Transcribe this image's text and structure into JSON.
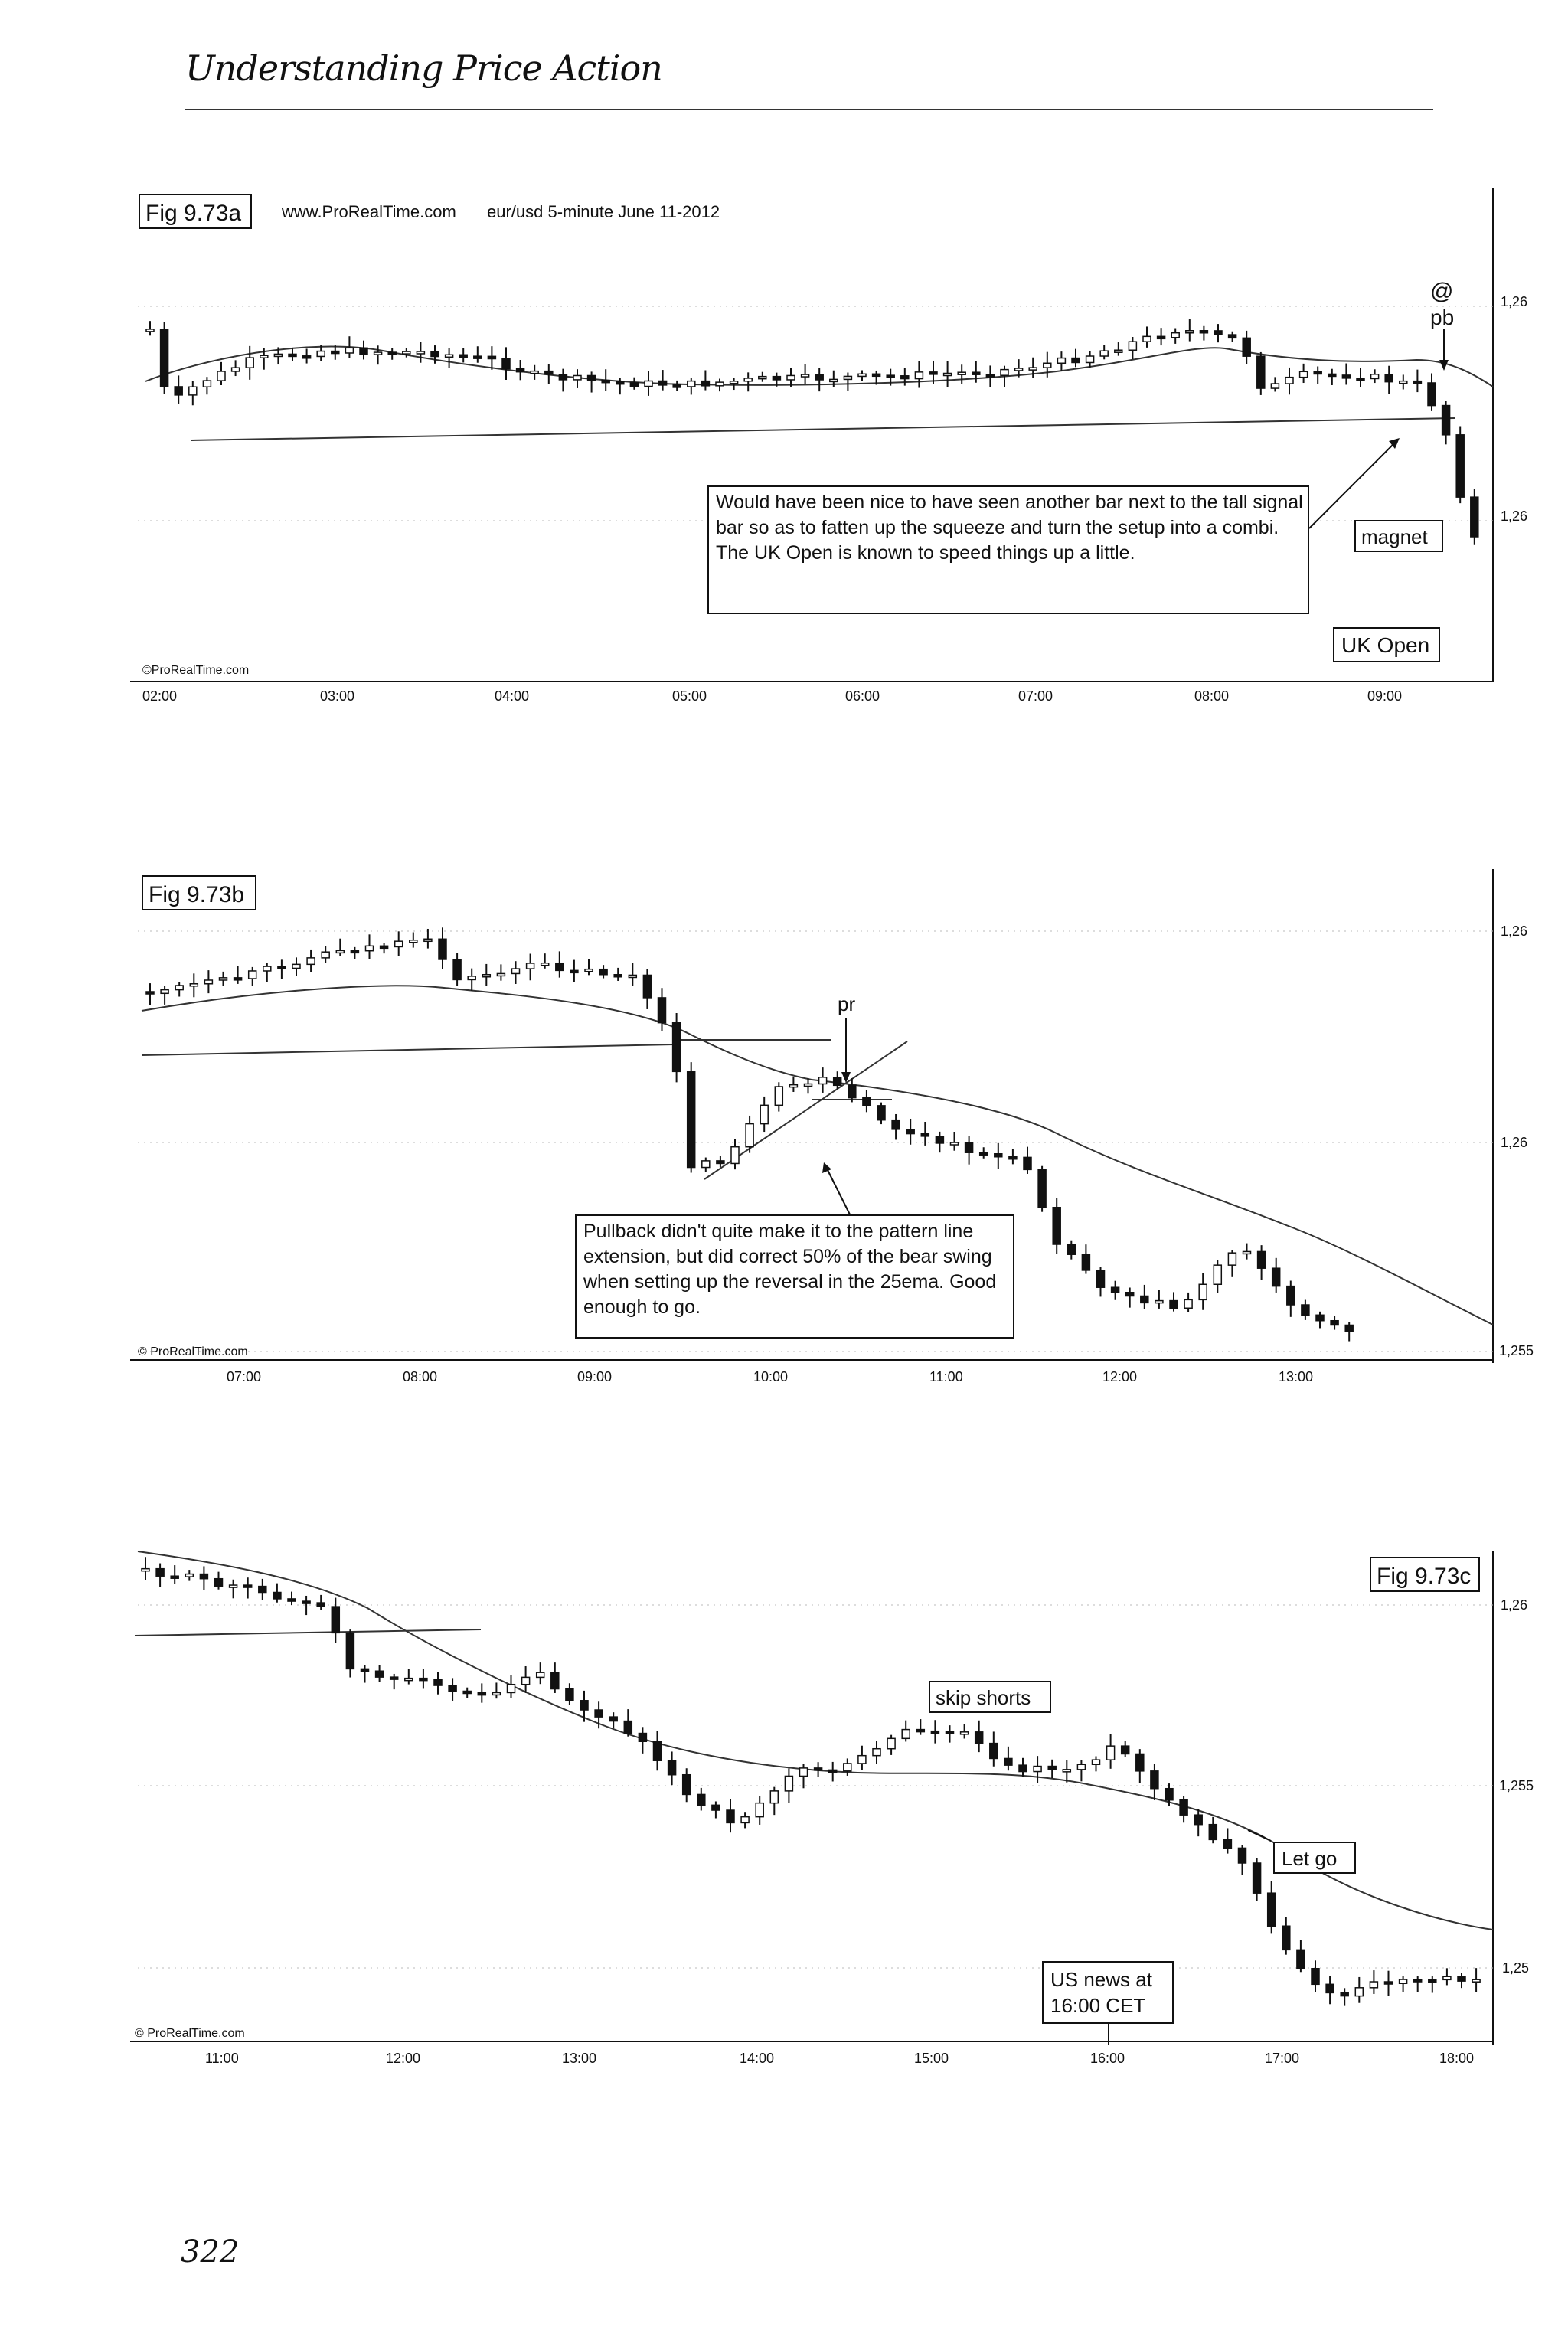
{
  "page": {
    "header": "Understanding Price Action",
    "page_number": "322"
  },
  "chart_data": [
    {
      "type": "candlestick",
      "fig_label": "Fig 9.73a",
      "source": "www.ProRealTime.com",
      "title": "eur/usd 5-minute June 11-2012",
      "watermark": "©ProRealTime.com",
      "x_ticks": [
        "02:00",
        "03:00",
        "04:00",
        "05:00",
        "06:00",
        "07:00",
        "08:00",
        "09:00"
      ],
      "y_ticks": [
        "1,26",
        "1,26"
      ],
      "annotations": {
        "note": "Would have been nice to have seen another bar next to the tall signal bar so as to fatten up the squeeze and turn the setup into a combi. The UK Open is known to speed things up a little.",
        "magnet": "magnet",
        "uk_open": "UK Open",
        "at": "@",
        "pb": "pb"
      },
      "series_description": "Flat range ~02:00–08:00, drop below the 25ema then break down after 09:00"
    },
    {
      "type": "candlestick",
      "fig_label": "Fig 9.73b",
      "watermark": "© ProRealTime.com",
      "x_ticks": [
        "07:00",
        "08:00",
        "09:00",
        "10:00",
        "11:00",
        "12:00",
        "13:00"
      ],
      "y_ticks": [
        "1,26",
        "1,26",
        "1,255"
      ],
      "annotations": {
        "note": "Pullback didn't quite make it to the pattern line extension, but did correct 50% of the bear swing when setting up the reversal in the 25ema. Good enough to go.",
        "pr": "pr"
      }
    },
    {
      "type": "candlestick",
      "fig_label": "Fig 9.73c",
      "watermark": "© ProRealTime.com",
      "x_ticks": [
        "11:00",
        "12:00",
        "13:00",
        "14:00",
        "15:00",
        "16:00",
        "17:00",
        "18:00"
      ],
      "y_ticks": [
        "1,26",
        "1,255",
        "1,25"
      ],
      "annotations": {
        "skip": "skip shorts",
        "letgo": "Let go",
        "us_news_1": "US news at",
        "us_news_2": "16:00 CET"
      }
    }
  ]
}
